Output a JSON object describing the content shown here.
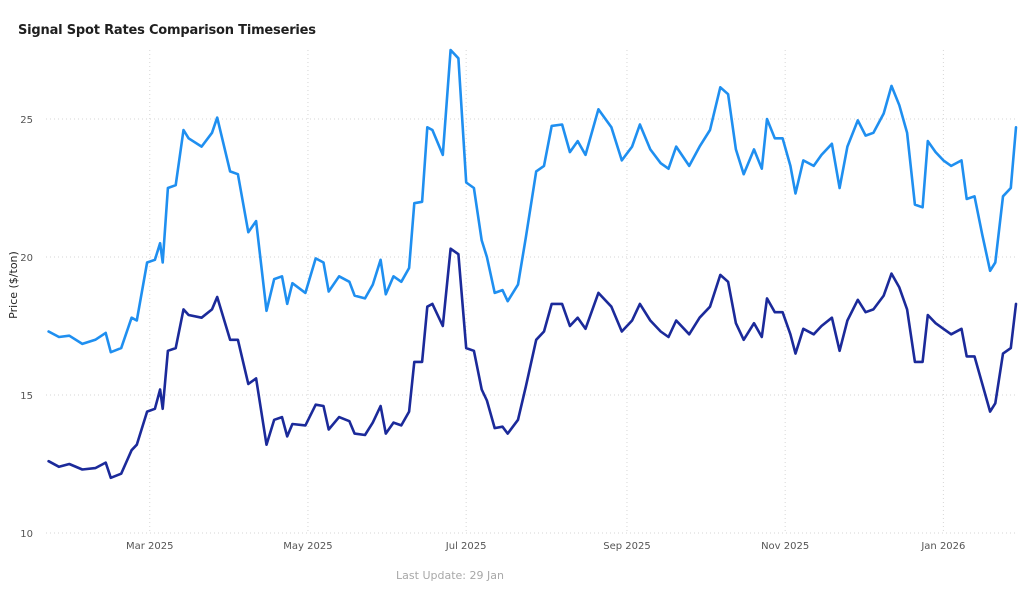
{
  "title": "Signal Spot Rates Comparison Timeseries",
  "footer": "Last Update: 29 Jan",
  "chart_data": {
    "type": "line",
    "title": "Signal Spot Rates Comparison Timeseries",
    "xlabel": "",
    "ylabel": "Price ($/ton)",
    "x_range": [
      "2025-01-20",
      "2026-01-29"
    ],
    "ylim": [
      10,
      27.5
    ],
    "y_ticks": [
      10,
      15,
      20,
      25
    ],
    "x_ticks": [
      {
        "date": "2025-03-01",
        "label": "Mar 2025"
      },
      {
        "date": "2025-05-01",
        "label": "May 2025"
      },
      {
        "date": "2025-07-01",
        "label": "Jul 2025"
      },
      {
        "date": "2025-09-01",
        "label": "Sep 2025"
      },
      {
        "date": "2025-11-01",
        "label": "Nov 2025"
      },
      {
        "date": "2026-01-01",
        "label": "Jan 2026"
      }
    ],
    "grid": true,
    "legend": "none",
    "series": [
      {
        "color": "#1f8ff0",
        "points": [
          [
            "2025-01-21",
            17.3
          ],
          [
            "2025-01-25",
            17.1
          ],
          [
            "2025-01-29",
            17.15
          ],
          [
            "2025-02-03",
            16.85
          ],
          [
            "2025-02-08",
            17.0
          ],
          [
            "2025-02-12",
            17.25
          ],
          [
            "2025-02-14",
            16.55
          ],
          [
            "2025-02-18",
            16.7
          ],
          [
            "2025-02-22",
            17.8
          ],
          [
            "2025-02-24",
            17.7
          ],
          [
            "2025-02-28",
            19.8
          ],
          [
            "2025-03-03",
            19.9
          ],
          [
            "2025-03-05",
            20.5
          ],
          [
            "2025-03-06",
            19.8
          ],
          [
            "2025-03-08",
            22.5
          ],
          [
            "2025-03-11",
            22.6
          ],
          [
            "2025-03-14",
            24.6
          ],
          [
            "2025-03-16",
            24.3
          ],
          [
            "2025-03-21",
            24.0
          ],
          [
            "2025-03-25",
            24.5
          ],
          [
            "2025-03-27",
            25.05
          ],
          [
            "2025-04-01",
            23.1
          ],
          [
            "2025-04-04",
            23.0
          ],
          [
            "2025-04-08",
            20.9
          ],
          [
            "2025-04-11",
            21.3
          ],
          [
            "2025-04-15",
            18.05
          ],
          [
            "2025-04-18",
            19.2
          ],
          [
            "2025-04-21",
            19.3
          ],
          [
            "2025-04-23",
            18.3
          ],
          [
            "2025-04-25",
            19.05
          ],
          [
            "2025-04-30",
            18.7
          ],
          [
            "2025-05-04",
            19.95
          ],
          [
            "2025-05-07",
            19.8
          ],
          [
            "2025-05-09",
            18.75
          ],
          [
            "2025-05-13",
            19.3
          ],
          [
            "2025-05-17",
            19.1
          ],
          [
            "2025-05-19",
            18.6
          ],
          [
            "2025-05-23",
            18.5
          ],
          [
            "2025-05-26",
            19.0
          ],
          [
            "2025-05-29",
            19.9
          ],
          [
            "2025-05-31",
            18.65
          ],
          [
            "2025-06-03",
            19.3
          ],
          [
            "2025-06-06",
            19.1
          ],
          [
            "2025-06-09",
            19.6
          ],
          [
            "2025-06-11",
            21.95
          ],
          [
            "2025-06-14",
            22.0
          ],
          [
            "2025-06-16",
            24.7
          ],
          [
            "2025-06-18",
            24.6
          ],
          [
            "2025-06-22",
            23.7
          ],
          [
            "2025-06-25",
            27.5
          ],
          [
            "2025-06-28",
            27.2
          ],
          [
            "2025-07-01",
            22.7
          ],
          [
            "2025-07-04",
            22.5
          ],
          [
            "2025-07-07",
            20.6
          ],
          [
            "2025-07-09",
            20.0
          ],
          [
            "2025-07-12",
            18.7
          ],
          [
            "2025-07-15",
            18.8
          ],
          [
            "2025-07-17",
            18.4
          ],
          [
            "2025-07-21",
            19.0
          ],
          [
            "2025-07-24",
            20.7
          ],
          [
            "2025-07-28",
            23.1
          ],
          [
            "2025-07-31",
            23.3
          ],
          [
            "2025-08-03",
            24.75
          ],
          [
            "2025-08-07",
            24.8
          ],
          [
            "2025-08-10",
            23.8
          ],
          [
            "2025-08-13",
            24.2
          ],
          [
            "2025-08-16",
            23.7
          ],
          [
            "2025-08-21",
            25.35
          ],
          [
            "2025-08-26",
            24.7
          ],
          [
            "2025-08-30",
            23.5
          ],
          [
            "2025-09-03",
            24.0
          ],
          [
            "2025-09-06",
            24.8
          ],
          [
            "2025-09-10",
            23.9
          ],
          [
            "2025-09-14",
            23.4
          ],
          [
            "2025-09-17",
            23.2
          ],
          [
            "2025-09-20",
            24.0
          ],
          [
            "2025-09-25",
            23.3
          ],
          [
            "2025-09-29",
            24.0
          ],
          [
            "2025-10-03",
            24.6
          ],
          [
            "2025-10-07",
            26.15
          ],
          [
            "2025-10-10",
            25.9
          ],
          [
            "2025-10-13",
            23.9
          ],
          [
            "2025-10-16",
            23.0
          ],
          [
            "2025-10-20",
            23.9
          ],
          [
            "2025-10-23",
            23.2
          ],
          [
            "2025-10-25",
            25.0
          ],
          [
            "2025-10-28",
            24.3
          ],
          [
            "2025-10-31",
            24.3
          ],
          [
            "2025-11-03",
            23.3
          ],
          [
            "2025-11-05",
            22.3
          ],
          [
            "2025-11-08",
            23.5
          ],
          [
            "2025-11-12",
            23.3
          ],
          [
            "2025-11-15",
            23.7
          ],
          [
            "2025-11-19",
            24.1
          ],
          [
            "2025-11-22",
            22.5
          ],
          [
            "2025-11-25",
            24.0
          ],
          [
            "2025-11-29",
            24.95
          ],
          [
            "2025-12-02",
            24.4
          ],
          [
            "2025-12-05",
            24.5
          ],
          [
            "2025-12-09",
            25.2
          ],
          [
            "2025-12-12",
            26.2
          ],
          [
            "2025-12-15",
            25.5
          ],
          [
            "2025-12-18",
            24.5
          ],
          [
            "2025-12-21",
            21.9
          ],
          [
            "2025-12-24",
            21.8
          ],
          [
            "2025-12-26",
            24.2
          ],
          [
            "2025-12-29",
            23.8
          ],
          [
            "2026-01-01",
            23.5
          ],
          [
            "2026-01-04",
            23.3
          ],
          [
            "2026-01-08",
            23.5
          ],
          [
            "2026-01-10",
            22.1
          ],
          [
            "2026-01-13",
            22.2
          ],
          [
            "2026-01-16",
            20.8
          ],
          [
            "2026-01-19",
            19.5
          ],
          [
            "2026-01-21",
            19.8
          ],
          [
            "2026-01-24",
            22.2
          ],
          [
            "2026-01-27",
            22.5
          ],
          [
            "2026-01-29",
            24.7
          ]
        ]
      },
      {
        "color": "#1b2a9a",
        "points": [
          [
            "2025-01-21",
            12.6
          ],
          [
            "2025-01-25",
            12.4
          ],
          [
            "2025-01-29",
            12.5
          ],
          [
            "2025-02-03",
            12.3
          ],
          [
            "2025-02-08",
            12.35
          ],
          [
            "2025-02-12",
            12.55
          ],
          [
            "2025-02-14",
            12.0
          ],
          [
            "2025-02-18",
            12.15
          ],
          [
            "2025-02-22",
            13.0
          ],
          [
            "2025-02-24",
            13.2
          ],
          [
            "2025-02-28",
            14.4
          ],
          [
            "2025-03-03",
            14.5
          ],
          [
            "2025-03-05",
            15.2
          ],
          [
            "2025-03-06",
            14.5
          ],
          [
            "2025-03-08",
            16.6
          ],
          [
            "2025-03-11",
            16.7
          ],
          [
            "2025-03-14",
            18.1
          ],
          [
            "2025-03-16",
            17.9
          ],
          [
            "2025-03-21",
            17.8
          ],
          [
            "2025-03-25",
            18.1
          ],
          [
            "2025-03-27",
            18.55
          ],
          [
            "2025-04-01",
            17.0
          ],
          [
            "2025-04-04",
            17.0
          ],
          [
            "2025-04-08",
            15.4
          ],
          [
            "2025-04-11",
            15.6
          ],
          [
            "2025-04-15",
            13.2
          ],
          [
            "2025-04-18",
            14.1
          ],
          [
            "2025-04-21",
            14.2
          ],
          [
            "2025-04-23",
            13.5
          ],
          [
            "2025-04-25",
            13.95
          ],
          [
            "2025-04-30",
            13.9
          ],
          [
            "2025-05-04",
            14.65
          ],
          [
            "2025-05-07",
            14.6
          ],
          [
            "2025-05-09",
            13.75
          ],
          [
            "2025-05-13",
            14.2
          ],
          [
            "2025-05-17",
            14.05
          ],
          [
            "2025-05-19",
            13.6
          ],
          [
            "2025-05-23",
            13.55
          ],
          [
            "2025-05-26",
            14.0
          ],
          [
            "2025-05-29",
            14.6
          ],
          [
            "2025-05-31",
            13.6
          ],
          [
            "2025-06-03",
            14.0
          ],
          [
            "2025-06-06",
            13.9
          ],
          [
            "2025-06-09",
            14.4
          ],
          [
            "2025-06-11",
            16.2
          ],
          [
            "2025-06-14",
            16.2
          ],
          [
            "2025-06-16",
            18.2
          ],
          [
            "2025-06-18",
            18.3
          ],
          [
            "2025-06-22",
            17.5
          ],
          [
            "2025-06-25",
            20.3
          ],
          [
            "2025-06-28",
            20.1
          ],
          [
            "2025-07-01",
            16.7
          ],
          [
            "2025-07-04",
            16.6
          ],
          [
            "2025-07-07",
            15.2
          ],
          [
            "2025-07-09",
            14.8
          ],
          [
            "2025-07-12",
            13.8
          ],
          [
            "2025-07-15",
            13.85
          ],
          [
            "2025-07-17",
            13.6
          ],
          [
            "2025-07-21",
            14.1
          ],
          [
            "2025-07-24",
            15.3
          ],
          [
            "2025-07-28",
            17.0
          ],
          [
            "2025-07-31",
            17.3
          ],
          [
            "2025-08-03",
            18.3
          ],
          [
            "2025-08-07",
            18.3
          ],
          [
            "2025-08-10",
            17.5
          ],
          [
            "2025-08-13",
            17.8
          ],
          [
            "2025-08-16",
            17.4
          ],
          [
            "2025-08-21",
            18.7
          ],
          [
            "2025-08-26",
            18.2
          ],
          [
            "2025-08-30",
            17.3
          ],
          [
            "2025-09-03",
            17.7
          ],
          [
            "2025-09-06",
            18.3
          ],
          [
            "2025-09-10",
            17.7
          ],
          [
            "2025-09-14",
            17.3
          ],
          [
            "2025-09-17",
            17.1
          ],
          [
            "2025-09-20",
            17.7
          ],
          [
            "2025-09-25",
            17.2
          ],
          [
            "2025-09-29",
            17.8
          ],
          [
            "2025-10-03",
            18.2
          ],
          [
            "2025-10-07",
            19.35
          ],
          [
            "2025-10-10",
            19.1
          ],
          [
            "2025-10-13",
            17.6
          ],
          [
            "2025-10-16",
            17.0
          ],
          [
            "2025-10-20",
            17.6
          ],
          [
            "2025-10-23",
            17.1
          ],
          [
            "2025-10-25",
            18.5
          ],
          [
            "2025-10-28",
            18.0
          ],
          [
            "2025-10-31",
            18.0
          ],
          [
            "2025-11-03",
            17.2
          ],
          [
            "2025-11-05",
            16.5
          ],
          [
            "2025-11-08",
            17.4
          ],
          [
            "2025-11-12",
            17.2
          ],
          [
            "2025-11-15",
            17.5
          ],
          [
            "2025-11-19",
            17.8
          ],
          [
            "2025-11-22",
            16.6
          ],
          [
            "2025-11-25",
            17.7
          ],
          [
            "2025-11-29",
            18.45
          ],
          [
            "2025-12-02",
            18.0
          ],
          [
            "2025-12-05",
            18.1
          ],
          [
            "2025-12-09",
            18.6
          ],
          [
            "2025-12-12",
            19.4
          ],
          [
            "2025-12-15",
            18.9
          ],
          [
            "2025-12-18",
            18.1
          ],
          [
            "2025-12-21",
            16.2
          ],
          [
            "2025-12-24",
            16.2
          ],
          [
            "2025-12-26",
            17.9
          ],
          [
            "2025-12-29",
            17.6
          ],
          [
            "2026-01-01",
            17.4
          ],
          [
            "2026-01-04",
            17.2
          ],
          [
            "2026-01-08",
            17.4
          ],
          [
            "2026-01-10",
            16.4
          ],
          [
            "2026-01-13",
            16.4
          ],
          [
            "2026-01-16",
            15.4
          ],
          [
            "2026-01-19",
            14.4
          ],
          [
            "2026-01-21",
            14.7
          ],
          [
            "2026-01-24",
            16.5
          ],
          [
            "2026-01-27",
            16.7
          ],
          [
            "2026-01-29",
            18.3
          ]
        ]
      }
    ]
  }
}
